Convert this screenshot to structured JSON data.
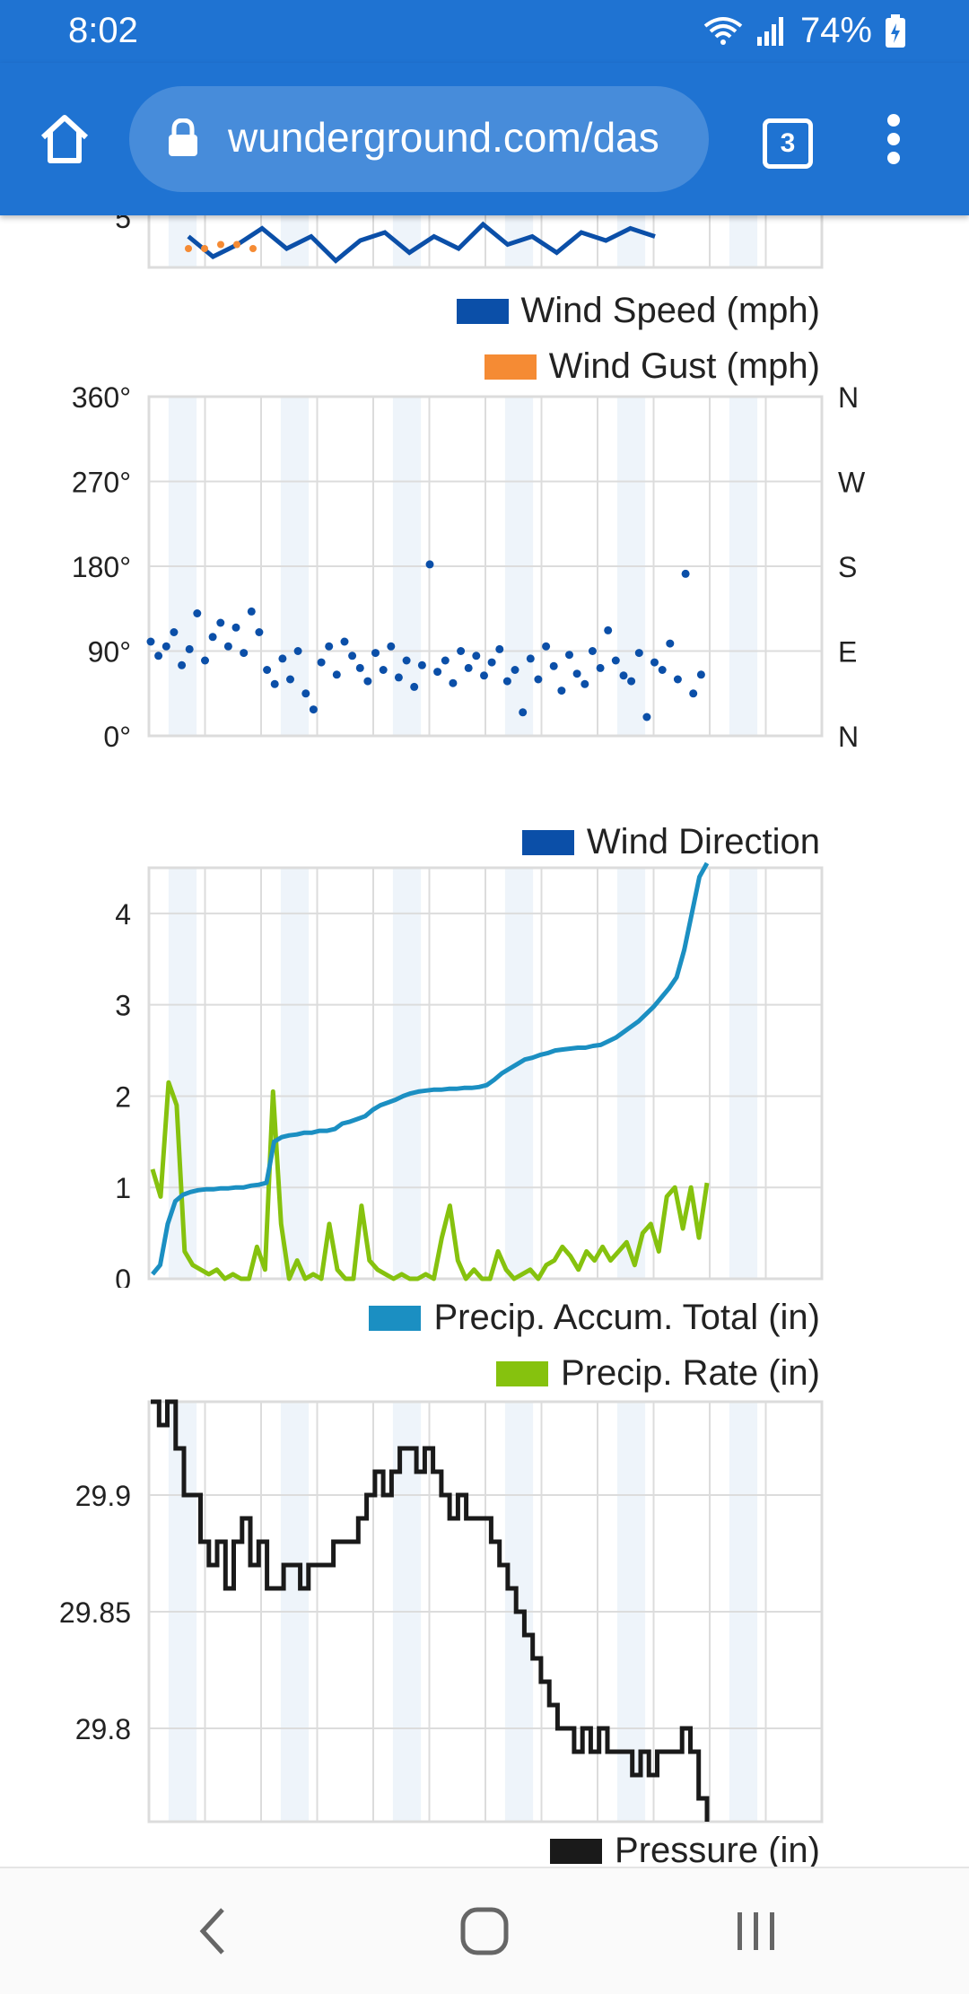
{
  "status_bar": {
    "time": "8:02",
    "battery": "74%"
  },
  "browser": {
    "url": "wunderground.com/das",
    "tab_count": "3"
  },
  "colors": {
    "toolbar": "#1f73d2",
    "wind_speed": "#0b4fa8",
    "wind_gust": "#f58b34",
    "wind_direction": "#0b4fa8",
    "precip_accum": "#1b8fc2",
    "precip_rate": "#86c20e",
    "pressure": "#1a1a1a",
    "band": "#eef4fa",
    "grid": "#dcdcdc"
  },
  "icons": [
    "wifi-icon",
    "signal-icon",
    "battery-icon",
    "home-icon",
    "lock-icon",
    "more-vert-icon",
    "back-icon",
    "home-nav-icon",
    "recents-icon"
  ],
  "chart_data": [
    {
      "type": "line",
      "ylabel_ticks": [
        "5"
      ],
      "series": [
        {
          "name": "Wind Speed (mph)",
          "values": [
            4.9,
            4.4,
            4.7,
            5.1,
            4.6,
            4.9,
            4.3,
            4.8,
            5.0,
            4.5,
            4.9,
            4.6,
            5.2,
            4.7,
            4.9,
            4.5,
            5.0,
            4.8,
            5.1,
            4.9
          ]
        },
        {
          "name": "Wind Gust (mph)",
          "values": [
            4.6,
            4.6,
            4.7,
            4.7,
            4.6
          ]
        }
      ]
    },
    {
      "type": "scatter",
      "series": [
        {
          "name": "Wind Direction"
        }
      ],
      "y_ticks": [
        "360°",
        "270°",
        "180°",
        "90°",
        "0°"
      ],
      "y_right_ticks": [
        "N",
        "W",
        "S",
        "E",
        "N"
      ],
      "ylim": [
        0,
        360
      ],
      "points": [
        [
          0,
          100
        ],
        [
          1,
          85
        ],
        [
          2,
          95
        ],
        [
          3,
          110
        ],
        [
          4,
          75
        ],
        [
          5,
          92
        ],
        [
          6,
          130
        ],
        [
          7,
          80
        ],
        [
          8,
          105
        ],
        [
          9,
          120
        ],
        [
          10,
          95
        ],
        [
          11,
          115
        ],
        [
          12,
          88
        ],
        [
          13,
          132
        ],
        [
          14,
          110
        ],
        [
          15,
          70
        ],
        [
          16,
          55
        ],
        [
          17,
          82
        ],
        [
          18,
          60
        ],
        [
          19,
          90
        ],
        [
          20,
          45
        ],
        [
          21,
          28
        ],
        [
          22,
          78
        ],
        [
          23,
          95
        ],
        [
          24,
          65
        ],
        [
          25,
          100
        ],
        [
          26,
          85
        ],
        [
          27,
          72
        ],
        [
          28,
          58
        ],
        [
          29,
          88
        ],
        [
          30,
          70
        ],
        [
          31,
          95
        ],
        [
          32,
          62
        ],
        [
          33,
          80
        ],
        [
          34,
          52
        ],
        [
          35,
          75
        ],
        [
          36,
          182
        ],
        [
          37,
          68
        ],
        [
          38,
          80
        ],
        [
          39,
          56
        ],
        [
          40,
          90
        ],
        [
          41,
          72
        ],
        [
          42,
          85
        ],
        [
          43,
          64
        ],
        [
          44,
          78
        ],
        [
          45,
          92
        ],
        [
          46,
          58
        ],
        [
          47,
          70
        ],
        [
          48,
          25
        ],
        [
          49,
          82
        ],
        [
          50,
          60
        ],
        [
          51,
          95
        ],
        [
          52,
          74
        ],
        [
          53,
          48
        ],
        [
          54,
          86
        ],
        [
          55,
          66
        ],
        [
          56,
          55
        ],
        [
          57,
          90
        ],
        [
          58,
          72
        ],
        [
          59,
          112
        ],
        [
          60,
          80
        ],
        [
          61,
          64
        ],
        [
          62,
          58
        ],
        [
          63,
          88
        ],
        [
          64,
          20
        ],
        [
          65,
          78
        ],
        [
          66,
          70
        ],
        [
          67,
          98
        ],
        [
          68,
          60
        ],
        [
          69,
          172
        ],
        [
          70,
          45
        ],
        [
          71,
          65
        ]
      ],
      "x_max": 72
    },
    {
      "type": "line",
      "y_ticks": [
        "4",
        "3",
        "2",
        "1",
        "0"
      ],
      "ylim": [
        0,
        4.5
      ],
      "series": [
        {
          "name": "Precip. Accum. Total (in)",
          "values": [
            0.05,
            0.15,
            0.6,
            0.85,
            0.92,
            0.95,
            0.97,
            0.98,
            0.98,
            0.99,
            0.99,
            1.0,
            1.0,
            1.02,
            1.03,
            1.05,
            1.5,
            1.55,
            1.57,
            1.58,
            1.6,
            1.6,
            1.62,
            1.62,
            1.64,
            1.7,
            1.72,
            1.75,
            1.78,
            1.85,
            1.9,
            1.93,
            1.96,
            2.0,
            2.03,
            2.05,
            2.06,
            2.07,
            2.07,
            2.08,
            2.08,
            2.09,
            2.09,
            2.1,
            2.12,
            2.18,
            2.25,
            2.3,
            2.35,
            2.4,
            2.42,
            2.45,
            2.47,
            2.5,
            2.51,
            2.52,
            2.53,
            2.53,
            2.55,
            2.56,
            2.6,
            2.64,
            2.7,
            2.76,
            2.82,
            2.9,
            2.98,
            3.08,
            3.18,
            3.3,
            3.6,
            4.0,
            4.4,
            4.55
          ]
        },
        {
          "name": "Precip. Rate (in)",
          "values": [
            1.2,
            0.9,
            2.15,
            1.9,
            0.3,
            0.15,
            0.1,
            0.05,
            0.1,
            0.0,
            0.05,
            0.0,
            0.0,
            0.35,
            0.1,
            2.05,
            0.6,
            0.0,
            0.2,
            0.0,
            0.05,
            0.0,
            0.6,
            0.1,
            0.0,
            0.0,
            0.8,
            0.2,
            0.1,
            0.05,
            0.0,
            0.05,
            0.0,
            0.0,
            0.05,
            0.0,
            0.45,
            0.8,
            0.2,
            0.0,
            0.1,
            0.0,
            0.0,
            0.3,
            0.1,
            0.0,
            0.05,
            0.1,
            0.0,
            0.15,
            0.2,
            0.35,
            0.25,
            0.1,
            0.3,
            0.2,
            0.35,
            0.2,
            0.3,
            0.4,
            0.15,
            0.5,
            0.6,
            0.3,
            0.9,
            1.0,
            0.55,
            1.0,
            0.45,
            1.05
          ]
        }
      ]
    },
    {
      "type": "line",
      "y_ticks": [
        "29.9",
        "29.85",
        "29.8"
      ],
      "ylim": [
        29.76,
        29.94
      ],
      "series": [
        {
          "name": "Pressure (in)",
          "values": [
            29.94,
            29.93,
            29.94,
            29.92,
            29.9,
            29.9,
            29.88,
            29.87,
            29.88,
            29.86,
            29.88,
            29.89,
            29.87,
            29.88,
            29.86,
            29.86,
            29.87,
            29.87,
            29.86,
            29.87,
            29.87,
            29.87,
            29.88,
            29.88,
            29.88,
            29.89,
            29.9,
            29.91,
            29.9,
            29.91,
            29.92,
            29.92,
            29.91,
            29.92,
            29.91,
            29.9,
            29.89,
            29.9,
            29.89,
            29.89,
            29.89,
            29.88,
            29.87,
            29.86,
            29.85,
            29.84,
            29.83,
            29.82,
            29.81,
            29.8,
            29.8,
            29.79,
            29.8,
            29.79,
            29.8,
            29.79,
            29.79,
            29.79,
            29.78,
            29.79,
            29.78,
            29.79,
            29.79,
            29.79,
            29.8,
            29.79,
            29.77,
            29.76
          ]
        }
      ]
    }
  ]
}
